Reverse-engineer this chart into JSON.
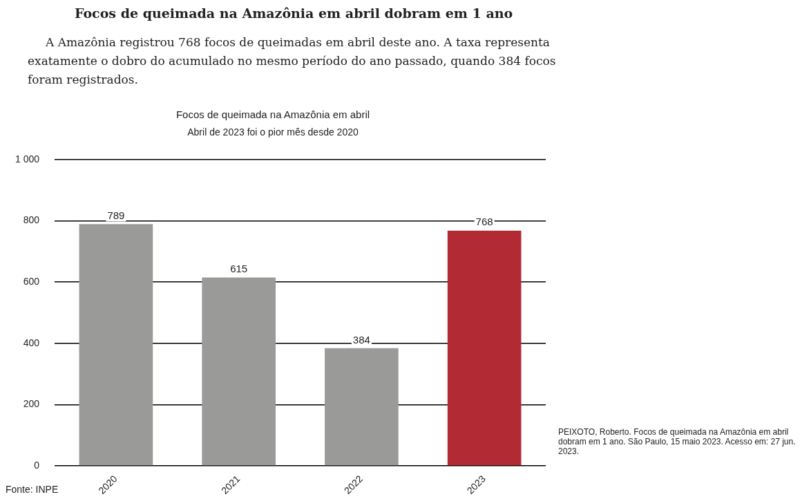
{
  "chart_data": {
    "type": "bar",
    "title": "Focos de queimada na Amazônia em abril",
    "subtitle": "Abril de 2023 foi o pior mês desde 2020",
    "categories": [
      "2020",
      "2021",
      "2022",
      "2023"
    ],
    "values": [
      789,
      615,
      384,
      768
    ],
    "colors": [
      "#9a9b98",
      "#9a9b98",
      "#9a9b98",
      "#b22a33"
    ],
    "ylim": [
      0,
      1000
    ],
    "yticks": [
      0,
      200,
      400,
      600,
      800,
      {
        "value": 1000,
        "label": "1 000"
      }
    ],
    "grid": "y",
    "legend": false,
    "data_labels": true,
    "annotations": [
      "Focos de queimada na Amazônia em abril dobram em 1 ano",
      "A Amazônia registrou 768 focos de queimadas em abril deste ano. A taxa representa exatamente o dobro do acumulado no mesmo período do ano passado, quando 384 focos foram registrados.",
      "Fonte: INPE",
      "PEIXOTO, Roberto. Focos de queimada na Amazônia em abril dobram em 1 ano. São Paulo, 15 maio 2023. Acesso em: 27 jun. 2023."
    ]
  }
}
